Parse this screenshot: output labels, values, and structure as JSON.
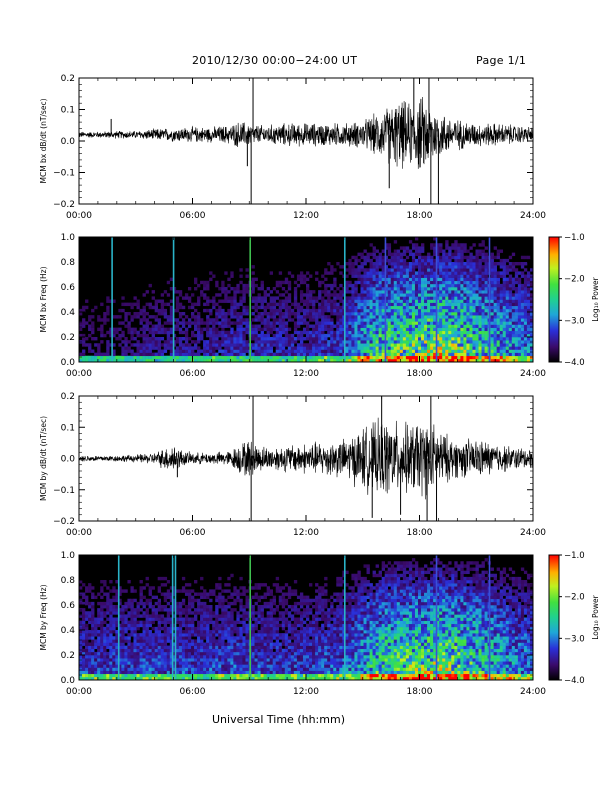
{
  "header": {
    "title": "2010/12/30  00:00−24:00 UT",
    "page": "Page 1/1"
  },
  "footer": {
    "xlabel": "Universal Time (hh:mm)"
  },
  "colorbar": {
    "label": "Log₁₀ Power",
    "ticks": [
      "−1.0",
      "−2.0",
      "−3.0",
      "−4.0"
    ],
    "range": [
      -4.0,
      -1.0
    ]
  },
  "chart_data": [
    {
      "type": "line",
      "ylabel": "MCM bx dB/dt (nT/sec)",
      "ylim": [
        -0.2,
        0.2
      ],
      "xlim": [
        0,
        24
      ],
      "x_ticks": [
        "00:00",
        "06:00",
        "12:00",
        "18:00",
        "24:00"
      ],
      "y_ticks": [
        "−0.2",
        "−0.1",
        "0.0",
        "0.1",
        "0.2"
      ],
      "envelope": {
        "x_hours": [
          0,
          1,
          2,
          3,
          4,
          5,
          6,
          7,
          8,
          8.5,
          9,
          9.5,
          10,
          11,
          12,
          13,
          14,
          15,
          15.5,
          16,
          16.5,
          17,
          17.5,
          18,
          18.5,
          19,
          19.5,
          20,
          21,
          22,
          23,
          24
        ],
        "amplitude": [
          0.008,
          0.008,
          0.01,
          0.01,
          0.015,
          0.018,
          0.02,
          0.02,
          0.025,
          0.035,
          0.03,
          0.025,
          0.025,
          0.03,
          0.03,
          0.03,
          0.03,
          0.035,
          0.05,
          0.06,
          0.08,
          0.09,
          0.08,
          0.1,
          0.09,
          0.06,
          0.05,
          0.04,
          0.03,
          0.03,
          0.025,
          0.02
        ],
        "offset": 0.02
      },
      "spikes": [
        {
          "x": 1.7,
          "y": 0.07
        },
        {
          "x": 8.9,
          "y": -0.08
        },
        {
          "x": 9.1,
          "y": -0.2
        },
        {
          "x": 9.2,
          "y": 0.2
        },
        {
          "x": 16.4,
          "y": -0.15
        },
        {
          "x": 17.7,
          "y": 0.2
        },
        {
          "x": 18.5,
          "y": 0.2
        },
        {
          "x": 18.6,
          "y": -0.2
        },
        {
          "x": 19.0,
          "y": -0.2
        }
      ]
    },
    {
      "type": "heatmap",
      "ylabel": "MCM bx Freq (Hz)",
      "ylim": [
        0.0,
        1.0
      ],
      "xlim": [
        0,
        24
      ],
      "x_ticks": [
        "00:00",
        "06:00",
        "12:00",
        "18:00",
        "24:00"
      ],
      "y_ticks": [
        "0.0",
        "0.2",
        "0.4",
        "0.6",
        "0.8",
        "1.0"
      ],
      "activity": {
        "x_hours": [
          0,
          2,
          4,
          6,
          8,
          10,
          12,
          14,
          15,
          16,
          17,
          18,
          19,
          20,
          21,
          22,
          23,
          24
        ],
        "level": [
          0.15,
          0.15,
          0.2,
          0.2,
          0.25,
          0.25,
          0.25,
          0.3,
          0.5,
          0.65,
          0.7,
          0.75,
          0.8,
          0.75,
          0.65,
          0.55,
          0.45,
          0.4
        ]
      },
      "vertical_lines": [
        {
          "x": 1.75,
          "color": "#2ab3c8"
        },
        {
          "x": 5.0,
          "color": "#2ab3c8"
        },
        {
          "x": 9.05,
          "color": "#3fbf4f"
        },
        {
          "x": 14.05,
          "color": "#2ab3c8"
        },
        {
          "x": 16.2,
          "color": "#3b4fd6"
        },
        {
          "x": 18.9,
          "color": "#3b4fd6"
        },
        {
          "x": 21.7,
          "color": "#3b4fd6"
        }
      ]
    },
    {
      "type": "line",
      "ylabel": "MCM by dB/dt (nT/sec)",
      "ylim": [
        -0.2,
        0.2
      ],
      "xlim": [
        0,
        24
      ],
      "x_ticks": [
        "00:00",
        "06:00",
        "12:00",
        "18:00",
        "24:00"
      ],
      "y_ticks": [
        "−0.2",
        "−0.1",
        "0.0",
        "0.1",
        "0.2"
      ],
      "envelope": {
        "x_hours": [
          0,
          1,
          2,
          3,
          4,
          5,
          5.5,
          6,
          7,
          8,
          8.5,
          9,
          9.5,
          10,
          11,
          12,
          13,
          14,
          15,
          15.5,
          16,
          16.5,
          17,
          17.5,
          18,
          18.5,
          19,
          19.5,
          20,
          21,
          22,
          23,
          24
        ],
        "amplitude": [
          0.008,
          0.008,
          0.008,
          0.01,
          0.015,
          0.04,
          0.02,
          0.015,
          0.015,
          0.02,
          0.04,
          0.05,
          0.035,
          0.03,
          0.035,
          0.04,
          0.045,
          0.05,
          0.08,
          0.09,
          0.1,
          0.1,
          0.09,
          0.09,
          0.1,
          0.1,
          0.08,
          0.06,
          0.05,
          0.05,
          0.04,
          0.03,
          0.025
        ],
        "offset": 0.0
      },
      "spikes": [
        {
          "x": 5.2,
          "y": -0.06
        },
        {
          "x": 9.1,
          "y": -0.2
        },
        {
          "x": 9.2,
          "y": 0.2
        },
        {
          "x": 15.5,
          "y": -0.19
        },
        {
          "x": 16.0,
          "y": 0.2
        },
        {
          "x": 17.0,
          "y": -0.18
        },
        {
          "x": 18.4,
          "y": -0.2
        },
        {
          "x": 18.6,
          "y": 0.2
        },
        {
          "x": 18.9,
          "y": -0.2
        }
      ]
    },
    {
      "type": "heatmap",
      "ylabel": "MCM by Freq (Hz)",
      "ylim": [
        0.0,
        1.0
      ],
      "xlim": [
        0,
        24
      ],
      "x_ticks": [
        "00:00",
        "06:00",
        "12:00",
        "18:00",
        "24:00"
      ],
      "y_ticks": [
        "0.0",
        "0.2",
        "0.4",
        "0.6",
        "0.8",
        "1.0"
      ],
      "activity": {
        "x_hours": [
          0,
          2,
          4,
          6,
          8,
          10,
          12,
          14,
          15,
          16,
          17,
          18,
          19,
          20,
          21,
          22,
          23,
          24
        ],
        "level": [
          0.3,
          0.3,
          0.32,
          0.3,
          0.33,
          0.3,
          0.3,
          0.38,
          0.5,
          0.65,
          0.7,
          0.72,
          0.78,
          0.72,
          0.65,
          0.55,
          0.45,
          0.4
        ]
      },
      "vertical_lines": [
        {
          "x": 2.1,
          "color": "#2ab3c8"
        },
        {
          "x": 4.95,
          "color": "#2ab3c8"
        },
        {
          "x": 5.1,
          "color": "#2ab3c8"
        },
        {
          "x": 9.05,
          "color": "#3fbf4f"
        },
        {
          "x": 14.05,
          "color": "#2ab3c8"
        },
        {
          "x": 18.9,
          "color": "#3b4fd6"
        },
        {
          "x": 21.7,
          "color": "#3b4fd6"
        }
      ]
    }
  ]
}
